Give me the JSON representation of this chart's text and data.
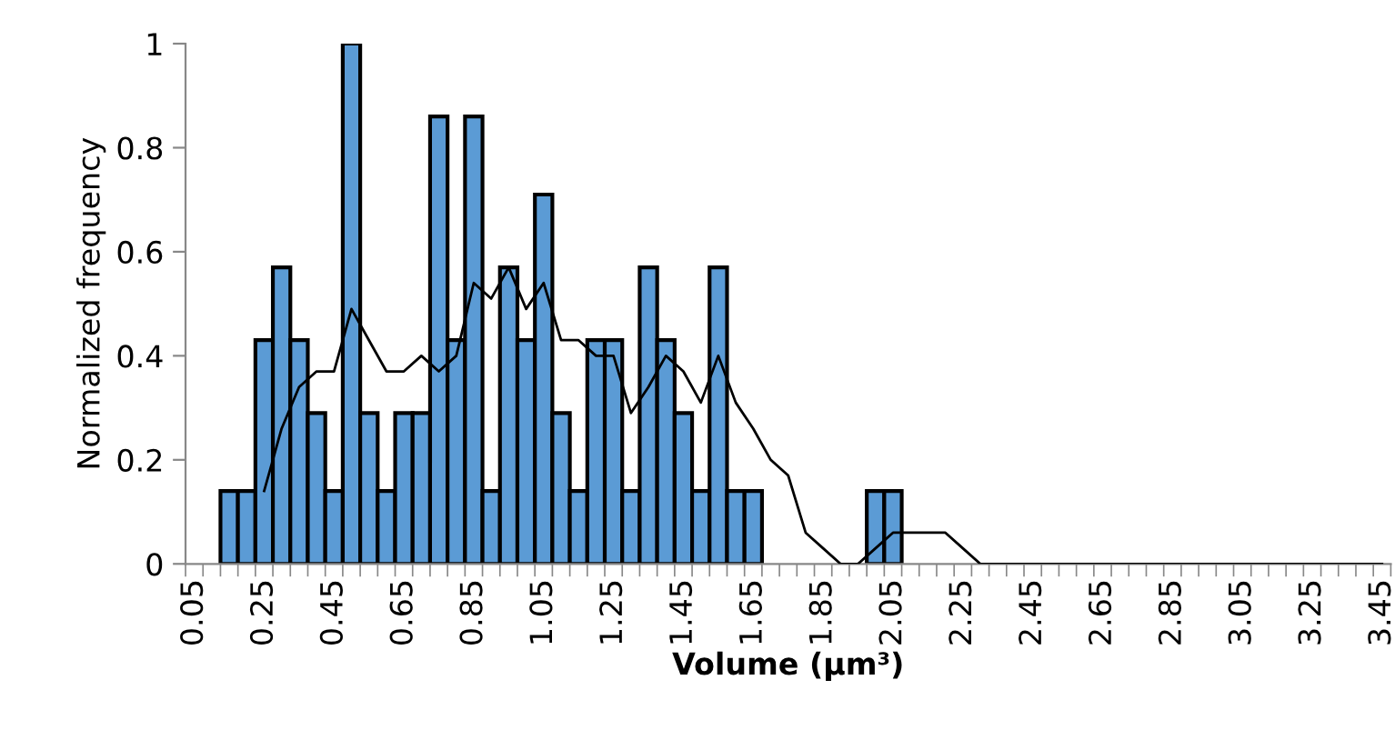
{
  "chart_data": {
    "type": "bar",
    "xlabel": "Volume (µm³)",
    "ylabel": "Normalized frequency",
    "categories": [
      "0.05",
      null,
      null,
      null,
      "0.25",
      null,
      null,
      null,
      "0.45",
      null,
      null,
      null,
      "0.65",
      null,
      null,
      null,
      "0.85",
      null,
      null,
      null,
      "1.05",
      null,
      null,
      null,
      "1.25",
      null,
      null,
      null,
      "1.45",
      null,
      null,
      null,
      "1.65",
      null,
      null,
      null,
      "1.85",
      null,
      null,
      null,
      "2.05",
      null,
      null,
      null,
      "2.25",
      null,
      null,
      null,
      "2.45",
      null,
      null,
      null,
      "2.65",
      null,
      null,
      null,
      "2.85",
      null,
      null,
      null,
      "3.05",
      null,
      null,
      null,
      "3.25",
      null,
      null,
      null,
      "3.45"
    ],
    "series": [
      {
        "color": "#5b9bd5",
        "values": [
          0,
          0,
          0.14,
          0.14,
          0.43,
          0.57,
          0.43,
          0.29,
          0.14,
          1,
          0.29,
          0.14,
          0.29,
          0.29,
          0.86,
          0.43,
          0.86,
          0.14,
          0.57,
          0.43,
          0.71,
          0.29,
          0.14,
          0.43,
          0.43,
          0.14,
          0.57,
          0.43,
          0.29,
          0.14,
          0.57,
          0.14,
          0.14,
          0,
          0,
          0,
          0,
          0,
          0,
          0.14,
          0.14,
          0,
          0,
          0,
          0,
          0,
          0,
          0,
          0,
          0,
          0,
          0,
          0,
          0,
          0,
          0,
          0,
          0,
          0,
          0,
          0,
          0,
          0,
          0,
          0,
          0,
          0,
          0,
          0
        ]
      },
      {
        "type": "line",
        "color": "#000000",
        "values": [
          null,
          null,
          null,
          null,
          0.14,
          0.26,
          0.34,
          0.37,
          0.37,
          0.49,
          0.43,
          0.37,
          0.37,
          0.4,
          0.37,
          0.4,
          0.54,
          0.51,
          0.57,
          0.49,
          0.54,
          0.43,
          0.43,
          0.4,
          0.4,
          0.29,
          0.34,
          0.4,
          0.37,
          0.31,
          0.4,
          0.31,
          0.26,
          0.2,
          0.17,
          0.06,
          0.03,
          0,
          0,
          0.03,
          0.06,
          0.06,
          0.06,
          0.06,
          0.03,
          0,
          0,
          0,
          0,
          0,
          0,
          0,
          0,
          0,
          0,
          0,
          0,
          0,
          0,
          0,
          0,
          0,
          0,
          0,
          0,
          0,
          0,
          0,
          0
        ]
      }
    ],
    "ylim": [
      0,
      1
    ],
    "yticks": [
      0,
      {
        "value": 0.2,
        "label": "0.2"
      },
      {
        "value": 0.4,
        "label": "0.4"
      },
      {
        "value": 0.6,
        "label": "0.6"
      },
      {
        "value": 0.8,
        "label": "0.8"
      },
      1
    ],
    "grid": false
  }
}
